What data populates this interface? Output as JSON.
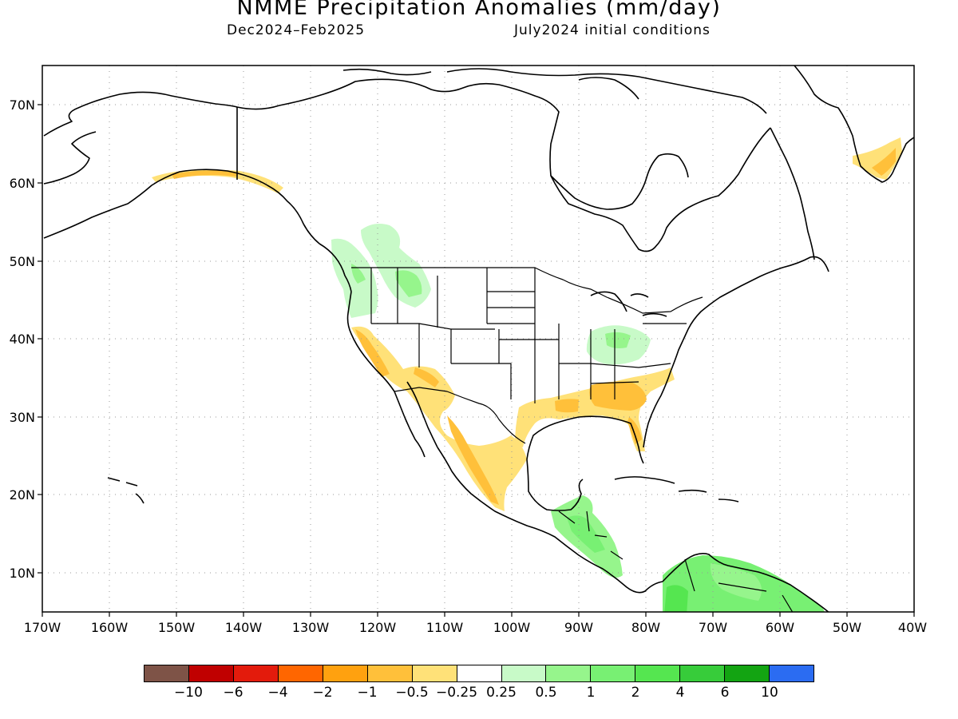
{
  "header": {
    "title": "NMME Precipitation Anomalies (mm/day)",
    "season": "Dec2024–Feb2025",
    "init": "July2024 initial conditions"
  },
  "map": {
    "lon_ticks": [
      "170W",
      "160W",
      "150W",
      "140W",
      "130W",
      "120W",
      "110W",
      "100W",
      "90W",
      "80W",
      "70W",
      "60W",
      "50W",
      "40W"
    ],
    "lat_ticks": [
      "70N",
      "60N",
      "50N",
      "40N",
      "30N",
      "20N",
      "10N"
    ],
    "land_color": "#ffffff",
    "coast_color": "#000000",
    "grid_color": "#999999"
  },
  "colorbar": {
    "colors": [
      "#7e5347",
      "#c00000",
      "#e31b0c",
      "#ff6600",
      "#ffa10f",
      "#ffc03a",
      "#ffe178",
      "#ffffff",
      "#c8fac8",
      "#96f58c",
      "#78f073",
      "#55e650",
      "#37cc3a",
      "#13a412",
      "#2b6cf2"
    ],
    "labels": [
      "−10",
      "−6",
      "−4",
      "−2",
      "−1",
      "−0.5",
      "−0.25",
      "0.25",
      "0.5",
      "1",
      "2",
      "4",
      "6",
      "10"
    ]
  }
}
